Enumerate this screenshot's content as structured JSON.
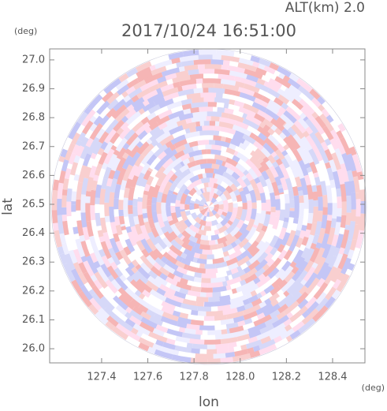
{
  "chart_data": {
    "type": "ppi",
    "title": "2017/10/24 16:51:00",
    "altitude_label": "ALT(km) 2.0",
    "y_unit": "(deg)",
    "x_unit": "(deg)",
    "xlabel": "lon",
    "ylabel": "lat",
    "xlim": [
      127.175,
      128.54
    ],
    "ylim": [
      25.951,
      27.038
    ],
    "xticks": [
      127.4,
      127.6,
      127.8,
      {
        "value": 128,
        "label": "128.0"
      },
      128.2,
      128.4
    ],
    "yticks": [
      {
        "value": 26,
        "label": "26.0"
      },
      26.1,
      26.2,
      26.3,
      26.4,
      26.5,
      26.6,
      26.7,
      26.8,
      26.9,
      {
        "value": 27,
        "label": "27.0"
      }
    ]
  }
}
